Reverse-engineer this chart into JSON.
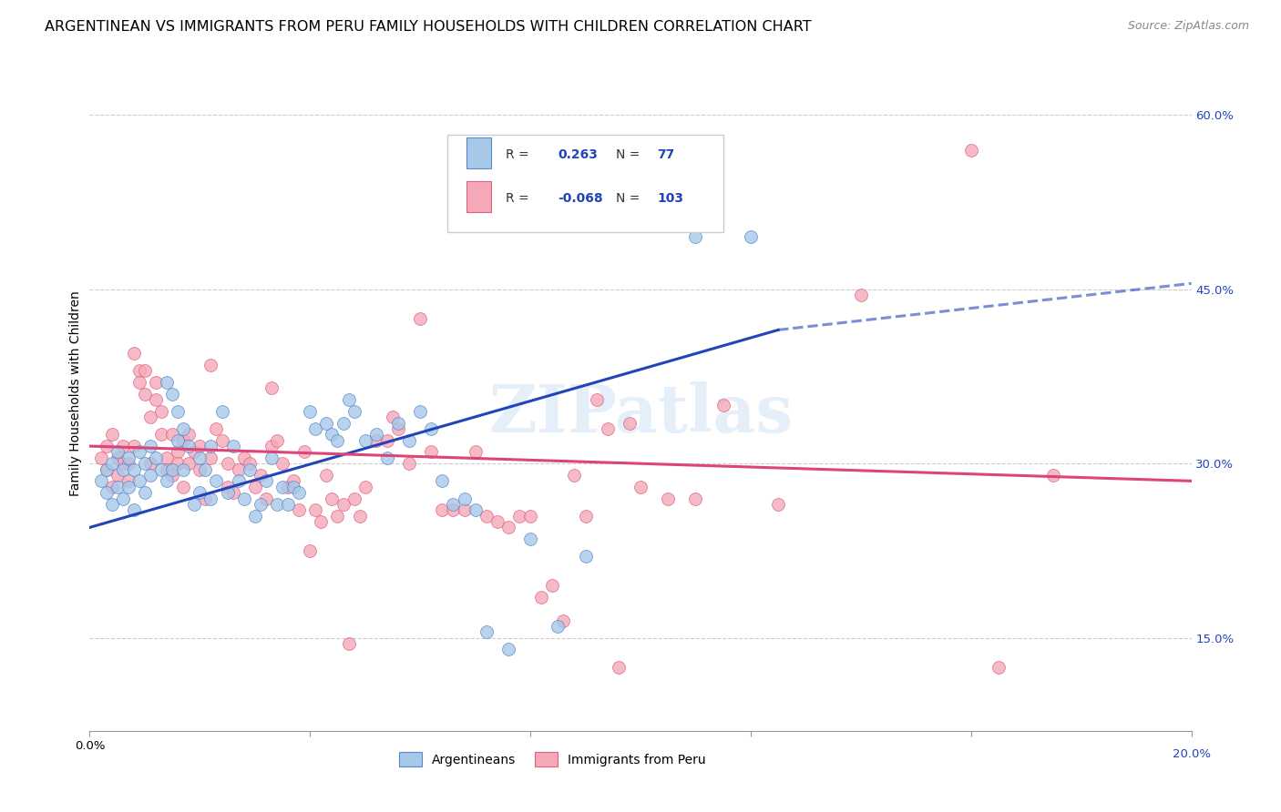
{
  "title": "ARGENTINEAN VS IMMIGRANTS FROM PERU FAMILY HOUSEHOLDS WITH CHILDREN CORRELATION CHART",
  "source": "Source: ZipAtlas.com",
  "ylabel": "Family Households with Children",
  "watermark": "ZIPatlas",
  "legend_blue_R": "0.263",
  "legend_blue_N": "77",
  "legend_pink_R": "-0.068",
  "legend_pink_N": "103",
  "xlim": [
    0.0,
    0.2
  ],
  "ylim": [
    0.07,
    0.65
  ],
  "yticks": [
    0.15,
    0.3,
    0.45,
    0.6
  ],
  "ytick_labels": [
    "15.0%",
    "30.0%",
    "45.0%",
    "60.0%"
  ],
  "blue_color": "#a8c8e8",
  "pink_color": "#f4a8b8",
  "blue_edge_color": "#5588cc",
  "pink_edge_color": "#e06080",
  "blue_line_color": "#2244bb",
  "pink_line_color": "#dd4477",
  "blue_scatter": [
    [
      0.002,
      0.285
    ],
    [
      0.003,
      0.295
    ],
    [
      0.003,
      0.275
    ],
    [
      0.004,
      0.3
    ],
    [
      0.004,
      0.265
    ],
    [
      0.005,
      0.31
    ],
    [
      0.005,
      0.28
    ],
    [
      0.006,
      0.295
    ],
    [
      0.006,
      0.27
    ],
    [
      0.007,
      0.305
    ],
    [
      0.007,
      0.28
    ],
    [
      0.008,
      0.295
    ],
    [
      0.008,
      0.26
    ],
    [
      0.009,
      0.31
    ],
    [
      0.009,
      0.285
    ],
    [
      0.01,
      0.3
    ],
    [
      0.01,
      0.275
    ],
    [
      0.011,
      0.315
    ],
    [
      0.011,
      0.29
    ],
    [
      0.012,
      0.305
    ],
    [
      0.013,
      0.295
    ],
    [
      0.014,
      0.37
    ],
    [
      0.014,
      0.285
    ],
    [
      0.015,
      0.36
    ],
    [
      0.015,
      0.295
    ],
    [
      0.016,
      0.345
    ],
    [
      0.016,
      0.32
    ],
    [
      0.017,
      0.33
    ],
    [
      0.017,
      0.295
    ],
    [
      0.018,
      0.315
    ],
    [
      0.019,
      0.265
    ],
    [
      0.02,
      0.305
    ],
    [
      0.02,
      0.275
    ],
    [
      0.021,
      0.295
    ],
    [
      0.022,
      0.315
    ],
    [
      0.022,
      0.27
    ],
    [
      0.023,
      0.285
    ],
    [
      0.024,
      0.345
    ],
    [
      0.025,
      0.275
    ],
    [
      0.026,
      0.315
    ],
    [
      0.027,
      0.285
    ],
    [
      0.028,
      0.27
    ],
    [
      0.029,
      0.295
    ],
    [
      0.03,
      0.255
    ],
    [
      0.031,
      0.265
    ],
    [
      0.032,
      0.285
    ],
    [
      0.033,
      0.305
    ],
    [
      0.034,
      0.265
    ],
    [
      0.035,
      0.28
    ],
    [
      0.036,
      0.265
    ],
    [
      0.037,
      0.28
    ],
    [
      0.038,
      0.275
    ],
    [
      0.04,
      0.345
    ],
    [
      0.041,
      0.33
    ],
    [
      0.043,
      0.335
    ],
    [
      0.044,
      0.325
    ],
    [
      0.045,
      0.32
    ],
    [
      0.046,
      0.335
    ],
    [
      0.047,
      0.355
    ],
    [
      0.048,
      0.345
    ],
    [
      0.05,
      0.32
    ],
    [
      0.052,
      0.325
    ],
    [
      0.054,
      0.305
    ],
    [
      0.056,
      0.335
    ],
    [
      0.058,
      0.32
    ],
    [
      0.06,
      0.345
    ],
    [
      0.062,
      0.33
    ],
    [
      0.064,
      0.285
    ],
    [
      0.066,
      0.265
    ],
    [
      0.068,
      0.27
    ],
    [
      0.07,
      0.26
    ],
    [
      0.072,
      0.155
    ],
    [
      0.076,
      0.14
    ],
    [
      0.08,
      0.235
    ],
    [
      0.085,
      0.16
    ],
    [
      0.09,
      0.22
    ],
    [
      0.11,
      0.495
    ],
    [
      0.12,
      0.495
    ]
  ],
  "pink_scatter": [
    [
      0.002,
      0.305
    ],
    [
      0.003,
      0.295
    ],
    [
      0.003,
      0.315
    ],
    [
      0.004,
      0.325
    ],
    [
      0.004,
      0.28
    ],
    [
      0.005,
      0.305
    ],
    [
      0.005,
      0.29
    ],
    [
      0.006,
      0.315
    ],
    [
      0.006,
      0.3
    ],
    [
      0.007,
      0.3
    ],
    [
      0.007,
      0.285
    ],
    [
      0.008,
      0.395
    ],
    [
      0.008,
      0.315
    ],
    [
      0.009,
      0.38
    ],
    [
      0.009,
      0.37
    ],
    [
      0.01,
      0.38
    ],
    [
      0.01,
      0.36
    ],
    [
      0.011,
      0.34
    ],
    [
      0.011,
      0.3
    ],
    [
      0.012,
      0.37
    ],
    [
      0.012,
      0.355
    ],
    [
      0.013,
      0.345
    ],
    [
      0.013,
      0.325
    ],
    [
      0.014,
      0.305
    ],
    [
      0.014,
      0.295
    ],
    [
      0.015,
      0.325
    ],
    [
      0.015,
      0.29
    ],
    [
      0.016,
      0.31
    ],
    [
      0.016,
      0.3
    ],
    [
      0.017,
      0.32
    ],
    [
      0.017,
      0.28
    ],
    [
      0.018,
      0.325
    ],
    [
      0.018,
      0.3
    ],
    [
      0.019,
      0.31
    ],
    [
      0.02,
      0.295
    ],
    [
      0.02,
      0.315
    ],
    [
      0.021,
      0.27
    ],
    [
      0.022,
      0.305
    ],
    [
      0.022,
      0.385
    ],
    [
      0.023,
      0.33
    ],
    [
      0.024,
      0.32
    ],
    [
      0.025,
      0.3
    ],
    [
      0.025,
      0.28
    ],
    [
      0.026,
      0.275
    ],
    [
      0.027,
      0.295
    ],
    [
      0.028,
      0.305
    ],
    [
      0.029,
      0.3
    ],
    [
      0.03,
      0.28
    ],
    [
      0.031,
      0.29
    ],
    [
      0.032,
      0.27
    ],
    [
      0.033,
      0.365
    ],
    [
      0.033,
      0.315
    ],
    [
      0.034,
      0.32
    ],
    [
      0.035,
      0.3
    ],
    [
      0.036,
      0.28
    ],
    [
      0.037,
      0.285
    ],
    [
      0.038,
      0.26
    ],
    [
      0.039,
      0.31
    ],
    [
      0.04,
      0.225
    ],
    [
      0.041,
      0.26
    ],
    [
      0.042,
      0.25
    ],
    [
      0.043,
      0.29
    ],
    [
      0.044,
      0.27
    ],
    [
      0.045,
      0.255
    ],
    [
      0.046,
      0.265
    ],
    [
      0.047,
      0.145
    ],
    [
      0.048,
      0.27
    ],
    [
      0.049,
      0.255
    ],
    [
      0.05,
      0.28
    ],
    [
      0.052,
      0.32
    ],
    [
      0.054,
      0.32
    ],
    [
      0.055,
      0.34
    ],
    [
      0.056,
      0.33
    ],
    [
      0.058,
      0.3
    ],
    [
      0.06,
      0.425
    ],
    [
      0.062,
      0.31
    ],
    [
      0.064,
      0.26
    ],
    [
      0.066,
      0.26
    ],
    [
      0.068,
      0.26
    ],
    [
      0.07,
      0.31
    ],
    [
      0.072,
      0.255
    ],
    [
      0.074,
      0.25
    ],
    [
      0.076,
      0.245
    ],
    [
      0.078,
      0.255
    ],
    [
      0.08,
      0.255
    ],
    [
      0.082,
      0.185
    ],
    [
      0.084,
      0.195
    ],
    [
      0.086,
      0.165
    ],
    [
      0.088,
      0.29
    ],
    [
      0.09,
      0.255
    ],
    [
      0.092,
      0.355
    ],
    [
      0.094,
      0.33
    ],
    [
      0.096,
      0.125
    ],
    [
      0.098,
      0.335
    ],
    [
      0.1,
      0.28
    ],
    [
      0.105,
      0.27
    ],
    [
      0.11,
      0.27
    ],
    [
      0.115,
      0.35
    ],
    [
      0.125,
      0.265
    ],
    [
      0.14,
      0.445
    ],
    [
      0.16,
      0.57
    ],
    [
      0.165,
      0.125
    ],
    [
      0.175,
      0.29
    ]
  ],
  "blue_line": [
    [
      0.0,
      0.245
    ],
    [
      0.125,
      0.415
    ]
  ],
  "blue_dash_line": [
    [
      0.125,
      0.415
    ],
    [
      0.2,
      0.455
    ]
  ],
  "pink_line": [
    [
      0.0,
      0.315
    ],
    [
      0.2,
      0.285
    ]
  ],
  "background_color": "#ffffff",
  "grid_color": "#cccccc",
  "title_fontsize": 11.5,
  "axis_label_fontsize": 10,
  "tick_fontsize": 9.5,
  "source_fontsize": 9
}
